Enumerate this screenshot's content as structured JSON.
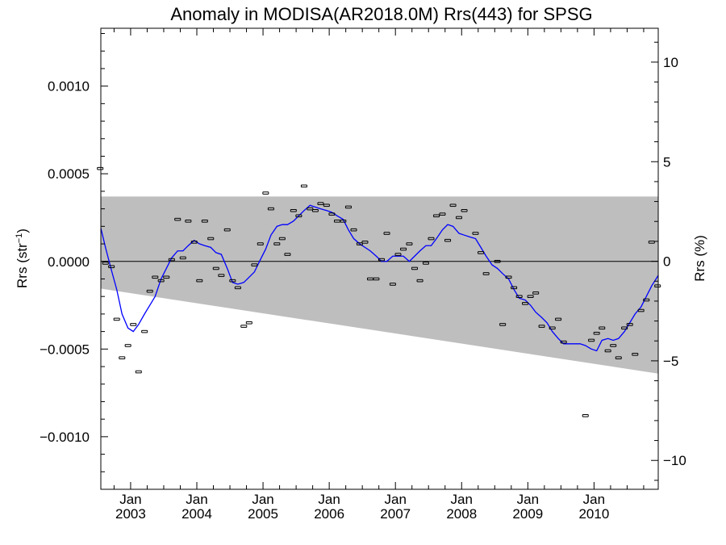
{
  "chart_data": {
    "type": "scatter",
    "title": "Anomaly in MODISA(AR2018.0M) Rrs(443) for SPSG",
    "ylabel_left": {
      "base": "Rrs (str",
      "sup": "−1",
      "close": ")"
    },
    "ylabel_right": "Rrs (%)",
    "xlim": [
      2002.55,
      2010.97
    ],
    "ylim": [
      -0.0013,
      0.00133
    ],
    "ylim_right_percent": [
      -11.45,
      11.7
    ],
    "yticks_left": [
      {
        "v": 0.001,
        "label": "0.0010"
      },
      {
        "v": 0.0005,
        "label": "0.0005"
      },
      {
        "v": 0.0,
        "label": "0.0000"
      },
      {
        "v": -0.0005,
        "label": "−0.0005"
      },
      {
        "v": -0.001,
        "label": "−0.0010"
      }
    ],
    "yticks_right": [
      {
        "v": 10,
        "label": "10"
      },
      {
        "v": 5,
        "label": "5"
      },
      {
        "v": 0,
        "label": "0"
      },
      {
        "v": -5,
        "label": "−5"
      },
      {
        "v": -10,
        "label": "−10"
      }
    ],
    "xticks": [
      {
        "v": 2003.0,
        "month": "Jan",
        "year": "2003"
      },
      {
        "v": 2004.0,
        "month": "Jan",
        "year": "2004"
      },
      {
        "v": 2005.0,
        "month": "Jan",
        "year": "2005"
      },
      {
        "v": 2006.0,
        "month": "Jan",
        "year": "2006"
      },
      {
        "v": 2007.0,
        "month": "Jan",
        "year": "2007"
      },
      {
        "v": 2008.0,
        "month": "Jan",
        "year": "2008"
      },
      {
        "v": 2009.0,
        "month": "Jan",
        "year": "2009"
      },
      {
        "v": 2010.0,
        "month": "Jan",
        "year": "2010"
      }
    ],
    "envelope": {
      "color": "#bebebe",
      "upper": [
        [
          2002.55,
          0.00037
        ],
        [
          2010.97,
          0.00037
        ]
      ],
      "lower": [
        [
          2002.55,
          -0.000155
        ],
        [
          2010.97,
          -0.00064
        ]
      ]
    },
    "zero_line": 0.0,
    "points": [
      [
        2002.54,
        0.00053
      ],
      [
        2002.62,
        -1e-05
      ],
      [
        2002.71,
        -3e-05
      ],
      [
        2002.79,
        -0.00033
      ],
      [
        2002.87,
        -0.00055
      ],
      [
        2002.96,
        -0.00048
      ],
      [
        2003.04,
        -0.00036
      ],
      [
        2003.12,
        -0.00063
      ],
      [
        2003.21,
        -0.0004
      ],
      [
        2003.29,
        -0.00017
      ],
      [
        2003.37,
        -9e-05
      ],
      [
        2003.46,
        -0.00011
      ],
      [
        2003.54,
        -9e-05
      ],
      [
        2003.62,
        1e-05
      ],
      [
        2003.71,
        0.00024
      ],
      [
        2003.79,
        2e-05
      ],
      [
        2003.87,
        0.00023
      ],
      [
        2003.96,
        0.00011
      ],
      [
        2004.04,
        -0.00011
      ],
      [
        2004.12,
        0.00023
      ],
      [
        2004.21,
        0.00013
      ],
      [
        2004.29,
        -4e-05
      ],
      [
        2004.37,
        -8e-05
      ],
      [
        2004.46,
        0.00018
      ],
      [
        2004.54,
        -0.00011
      ],
      [
        2004.62,
        -0.00015
      ],
      [
        2004.71,
        -0.00037
      ],
      [
        2004.79,
        -0.00035
      ],
      [
        2004.87,
        -2e-05
      ],
      [
        2004.96,
        0.0001
      ],
      [
        2005.04,
        0.00039
      ],
      [
        2005.12,
        0.0003
      ],
      [
        2005.21,
        0.0001
      ],
      [
        2005.29,
        0.00013
      ],
      [
        2005.37,
        4e-05
      ],
      [
        2005.46,
        0.00029
      ],
      [
        2005.54,
        0.00026
      ],
      [
        2005.62,
        0.00043
      ],
      [
        2005.71,
        0.0003
      ],
      [
        2005.79,
        0.00029
      ],
      [
        2005.87,
        0.00033
      ],
      [
        2005.96,
        0.00032
      ],
      [
        2006.04,
        0.00027
      ],
      [
        2006.12,
        0.00023
      ],
      [
        2006.21,
        0.00023
      ],
      [
        2006.29,
        0.00031
      ],
      [
        2006.37,
        0.00018
      ],
      [
        2006.46,
        0.0001
      ],
      [
        2006.54,
        0.00011
      ],
      [
        2006.62,
        -0.0001
      ],
      [
        2006.71,
        -0.0001
      ],
      [
        2006.79,
        1e-05
      ],
      [
        2006.87,
        0.00016
      ],
      [
        2006.96,
        -0.00013
      ],
      [
        2007.04,
        4e-05
      ],
      [
        2007.12,
        7e-05
      ],
      [
        2007.21,
        0.0001
      ],
      [
        2007.29,
        -4e-05
      ],
      [
        2007.37,
        -0.00011
      ],
      [
        2007.46,
        -1e-05
      ],
      [
        2007.54,
        0.00013
      ],
      [
        2007.62,
        0.00026
      ],
      [
        2007.71,
        0.00027
      ],
      [
        2007.79,
        0.00012
      ],
      [
        2007.87,
        0.00032
      ],
      [
        2007.96,
        0.00025
      ],
      [
        2008.04,
        0.00029
      ],
      [
        2008.21,
        0.00016
      ],
      [
        2008.29,
        5e-05
      ],
      [
        2008.37,
        -7e-05
      ],
      [
        2008.54,
        0.0
      ],
      [
        2008.62,
        -0.00036
      ],
      [
        2008.71,
        -9e-05
      ],
      [
        2008.79,
        -0.00015
      ],
      [
        2008.87,
        -0.0002
      ],
      [
        2008.96,
        -0.00024
      ],
      [
        2009.04,
        -0.0002
      ],
      [
        2009.12,
        -0.00018
      ],
      [
        2009.21,
        -0.00037
      ],
      [
        2009.37,
        -0.00038
      ],
      [
        2009.46,
        -0.00033
      ],
      [
        2009.54,
        -0.00046
      ],
      [
        2009.87,
        -0.00088
      ],
      [
        2009.96,
        -0.00045
      ],
      [
        2010.04,
        -0.00041
      ],
      [
        2010.12,
        -0.00038
      ],
      [
        2010.21,
        -0.00051
      ],
      [
        2010.29,
        -0.00048
      ],
      [
        2010.37,
        -0.00055
      ],
      [
        2010.46,
        -0.00038
      ],
      [
        2010.54,
        -0.00036
      ],
      [
        2010.62,
        -0.00053
      ],
      [
        2010.71,
        -0.00028
      ],
      [
        2010.79,
        -0.00022
      ],
      [
        2010.87,
        0.00011
      ],
      [
        2010.96,
        -0.00014
      ]
    ],
    "smooth_line": {
      "color": "#0000ff",
      "points": [
        [
          2002.55,
          0.00019
        ],
        [
          2002.62,
          8e-05
        ],
        [
          2002.71,
          -5e-05
        ],
        [
          2002.79,
          -0.00016
        ],
        [
          2002.87,
          -0.0003
        ],
        [
          2002.96,
          -0.00038
        ],
        [
          2003.04,
          -0.0004
        ],
        [
          2003.12,
          -0.00036
        ],
        [
          2003.21,
          -0.0003
        ],
        [
          2003.29,
          -0.00025
        ],
        [
          2003.37,
          -0.0002
        ],
        [
          2003.46,
          -0.0001
        ],
        [
          2003.54,
          -4e-05
        ],
        [
          2003.62,
          2e-05
        ],
        [
          2003.71,
          6e-05
        ],
        [
          2003.79,
          6e-05
        ],
        [
          2003.87,
          9e-05
        ],
        [
          2003.96,
          0.00012
        ],
        [
          2004.04,
          0.0001
        ],
        [
          2004.12,
          9e-05
        ],
        [
          2004.21,
          8e-05
        ],
        [
          2004.29,
          5e-05
        ],
        [
          2004.37,
          4e-05
        ],
        [
          2004.46,
          -4e-05
        ],
        [
          2004.54,
          -0.00012
        ],
        [
          2004.62,
          -0.00013
        ],
        [
          2004.71,
          -0.00012
        ],
        [
          2004.79,
          -9e-05
        ],
        [
          2004.87,
          -6e-05
        ],
        [
          2004.96,
          1e-05
        ],
        [
          2005.04,
          7e-05
        ],
        [
          2005.12,
          0.00015
        ],
        [
          2005.21,
          0.0002
        ],
        [
          2005.29,
          0.00021
        ],
        [
          2005.37,
          0.00021
        ],
        [
          2005.46,
          0.00023
        ],
        [
          2005.54,
          0.00026
        ],
        [
          2005.62,
          0.00029
        ],
        [
          2005.71,
          0.00032
        ],
        [
          2005.79,
          0.00031
        ],
        [
          2005.87,
          0.0003
        ],
        [
          2005.96,
          0.00029
        ],
        [
          2006.04,
          0.00028
        ],
        [
          2006.12,
          0.00026
        ],
        [
          2006.21,
          0.00024
        ],
        [
          2006.29,
          0.00018
        ],
        [
          2006.37,
          0.00013
        ],
        [
          2006.46,
          0.0001
        ],
        [
          2006.54,
          8e-05
        ],
        [
          2006.62,
          6e-05
        ],
        [
          2006.71,
          3e-05
        ],
        [
          2006.79,
          0.0
        ],
        [
          2006.87,
          0.0
        ],
        [
          2006.96,
          3e-05
        ],
        [
          2007.04,
          3e-05
        ],
        [
          2007.12,
          3e-05
        ],
        [
          2007.21,
          0.0
        ],
        [
          2007.29,
          3e-05
        ],
        [
          2007.37,
          6e-05
        ],
        [
          2007.46,
          9e-05
        ],
        [
          2007.54,
          9e-05
        ],
        [
          2007.62,
          0.00013
        ],
        [
          2007.71,
          0.00018
        ],
        [
          2007.79,
          0.00021
        ],
        [
          2007.87,
          0.0002
        ],
        [
          2007.96,
          0.00016
        ],
        [
          2008.04,
          0.00015
        ],
        [
          2008.12,
          0.00014
        ],
        [
          2008.21,
          0.00013
        ],
        [
          2008.29,
          8e-05
        ],
        [
          2008.37,
          3e-05
        ],
        [
          2008.46,
          -2e-05
        ],
        [
          2008.54,
          -4e-05
        ],
        [
          2008.62,
          -7e-05
        ],
        [
          2008.71,
          -0.0001
        ],
        [
          2008.79,
          -0.00016
        ],
        [
          2008.87,
          -0.00021
        ],
        [
          2008.96,
          -0.00022
        ],
        [
          2009.04,
          -0.00025
        ],
        [
          2009.12,
          -0.00029
        ],
        [
          2009.21,
          -0.00032
        ],
        [
          2009.29,
          -0.00035
        ],
        [
          2009.37,
          -0.0004
        ],
        [
          2009.46,
          -0.00044
        ],
        [
          2009.54,
          -0.00047
        ],
        [
          2009.62,
          -0.00047
        ],
        [
          2009.71,
          -0.00047
        ],
        [
          2009.79,
          -0.00047
        ],
        [
          2009.87,
          -0.00048
        ],
        [
          2009.96,
          -0.0005
        ],
        [
          2010.04,
          -0.00051
        ],
        [
          2010.12,
          -0.00045
        ],
        [
          2010.21,
          -0.00044
        ],
        [
          2010.29,
          -0.00045
        ],
        [
          2010.37,
          -0.00044
        ],
        [
          2010.46,
          -0.0004
        ],
        [
          2010.54,
          -0.00035
        ],
        [
          2010.62,
          -0.0003
        ],
        [
          2010.71,
          -0.00026
        ],
        [
          2010.79,
          -0.0002
        ],
        [
          2010.87,
          -0.00014
        ],
        [
          2010.97,
          -8e-05
        ]
      ]
    },
    "grid": false,
    "legend": "none"
  }
}
